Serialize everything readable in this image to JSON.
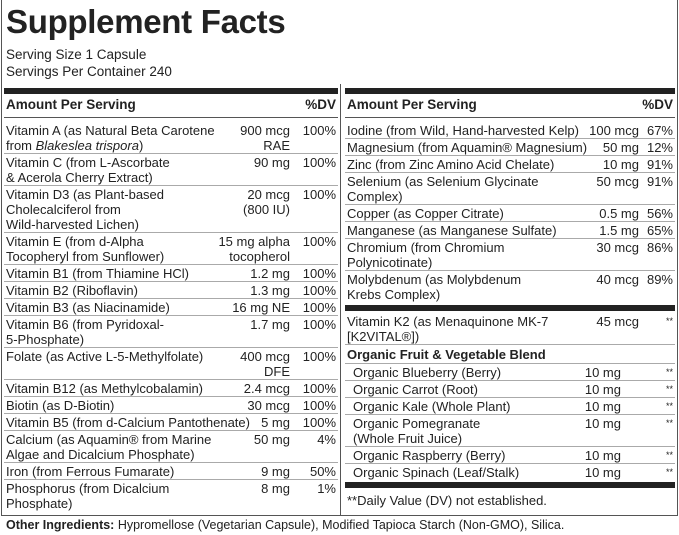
{
  "title": "Supplement Facts",
  "serving_size": "Serving Size 1 Capsule",
  "servings_per_container": "Servings Per Container 240",
  "header": {
    "amount": "Amount Per Serving",
    "dv": "%DV"
  },
  "left_rows": [
    {
      "name": "Vitamin A (as Natural Beta Carotene\n from ",
      "italic": "Blakeslea trispora",
      "after": ")",
      "amount": "900 mcg\nRAE",
      "dv": "100%"
    },
    {
      "name": "Vitamin C (from L-Ascorbate\n & Acerola Cherry Extract)",
      "amount": "90 mg",
      "dv": "100%"
    },
    {
      "name": "Vitamin D3 (as Plant-based\n Cholecalciferol from\n  Wild-harvested Lichen)",
      "amount": "20 mcg\n(800 IU)",
      "dv": "100%"
    },
    {
      "name": "Vitamin E (from d-Alpha\n Tocopheryl from Sunflower)",
      "amount": "15 mg alpha\ntocopherol",
      "dv": "100%"
    },
    {
      "name": "Vitamin B1 (from Thiamine HCl)",
      "amount": "1.2 mg",
      "dv": "100%"
    },
    {
      "name": "Vitamin B2 (Riboflavin)",
      "amount": "1.3 mg",
      "dv": "100%"
    },
    {
      "name": "Vitamin B3 (as Niacinamide)",
      "amount": "16 mg NE",
      "dv": "100%"
    },
    {
      "name": "Vitamin B6 (from Pyridoxal-\n 5-Phosphate)",
      "amount": "1.7 mg",
      "dv": "100%"
    },
    {
      "name": "Folate (as Active L-5-Methylfolate)",
      "amount": "400 mcg\nDFE",
      "dv": "100%"
    },
    {
      "name": "Vitamin B12 (as Methylcobalamin)",
      "amount": "2.4 mcg",
      "dv": "100%"
    },
    {
      "name": "Biotin (as D-Biotin)",
      "amount": "30 mcg",
      "dv": "100%"
    },
    {
      "name": "Vitamin B5 (from d-Calcium Pantothenate)",
      "amount": "5 mg",
      "dv": "100%"
    },
    {
      "name": "Calcium (as Aquamin® from Marine\n Algae and Dicalcium Phosphate)",
      "amount": "50 mg",
      "dv": "4%"
    },
    {
      "name": "Iron (from Ferrous Fumarate)",
      "amount": "9 mg",
      "dv": "50%"
    },
    {
      "name": "Phosphorus (from Dicalcium\n Phosphate)",
      "amount": "8 mg",
      "dv": "1%"
    }
  ],
  "right_rows": [
    {
      "name": "Iodine (from Wild, Hand-harvested Kelp)",
      "amount": "100 mcg",
      "dv": "67%"
    },
    {
      "name": "Magnesium (from Aquamin® Magnesium)",
      "amount": "50 mg",
      "dv": "12%"
    },
    {
      "name": "Zinc (from Zinc Amino Acid Chelate)",
      "amount": "10 mg",
      "dv": "91%"
    },
    {
      "name": "Selenium (as Selenium Glycinate\n Complex)",
      "amount": "50 mcg",
      "dv": "91%"
    },
    {
      "name": "Copper (as Copper Citrate)",
      "amount": "0.5 mg",
      "dv": "56%"
    },
    {
      "name": "Manganese (as Manganese Sulfate)",
      "amount": "1.5 mg",
      "dv": "65%"
    },
    {
      "name": "Chromium (from Chromium\n Polynicotinate)",
      "amount": "30 mcg",
      "dv": "86%"
    },
    {
      "name": "Molybdenum (as Molybdenum\n Krebs Complex)",
      "amount": "40 mcg",
      "dv": "89%"
    }
  ],
  "vitamin_k2": {
    "name": "Vitamin K2 (as Menaquinone MK-7\n[K2VITAL®])",
    "amount": "45 mcg",
    "dv": "**"
  },
  "blend": {
    "title": "Organic Fruit & Vegetable Blend",
    "items": [
      {
        "name": "Organic Blueberry (Berry)",
        "amount": "10 mg",
        "dv": "**"
      },
      {
        "name": "Organic Carrot (Root)",
        "amount": "10 mg",
        "dv": "**"
      },
      {
        "name": "Organic Kale (Whole Plant)",
        "amount": "10 mg",
        "dv": "**"
      },
      {
        "name": "Organic Pomegranate\n (Whole Fruit Juice)",
        "amount": "10 mg",
        "dv": "**"
      },
      {
        "name": "Organic Raspberry (Berry)",
        "amount": "10 mg",
        "dv": "**"
      },
      {
        "name": "Organic Spinach (Leaf/Stalk)",
        "amount": "10 mg",
        "dv": "**"
      }
    ]
  },
  "footnote": "**Daily Value (DV) not established.",
  "other_ingredients": {
    "label": "Other Ingredients:",
    "text": " Hypromellose (Vegetarian Capsule), Modified Tapioca Starch (Non-GMO), Silica."
  }
}
